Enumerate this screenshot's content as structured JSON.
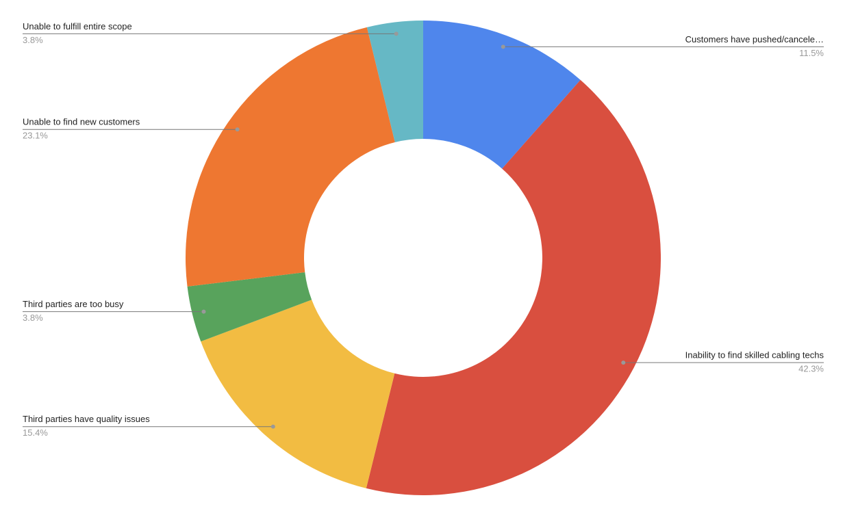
{
  "chart_data": {
    "type": "donut",
    "categories": [
      "Customers have pushed/cancele…",
      "Inability to find skilled cabling techs",
      "Third parties have quality issues",
      "Third parties are too busy",
      "Unable to find new customers",
      "Unable to fulfill entire scope"
    ],
    "values": [
      11.5,
      42.3,
      15.4,
      3.8,
      23.1,
      3.8
    ],
    "value_labels": [
      "11.5%",
      "42.3%",
      "15.4%",
      "3.8%",
      "23.1%",
      "3.8%"
    ],
    "colors": [
      "#4f86ec",
      "#d94f3f",
      "#f2bc42",
      "#58a35c",
      "#ee7731",
      "#66b8c5"
    ]
  }
}
